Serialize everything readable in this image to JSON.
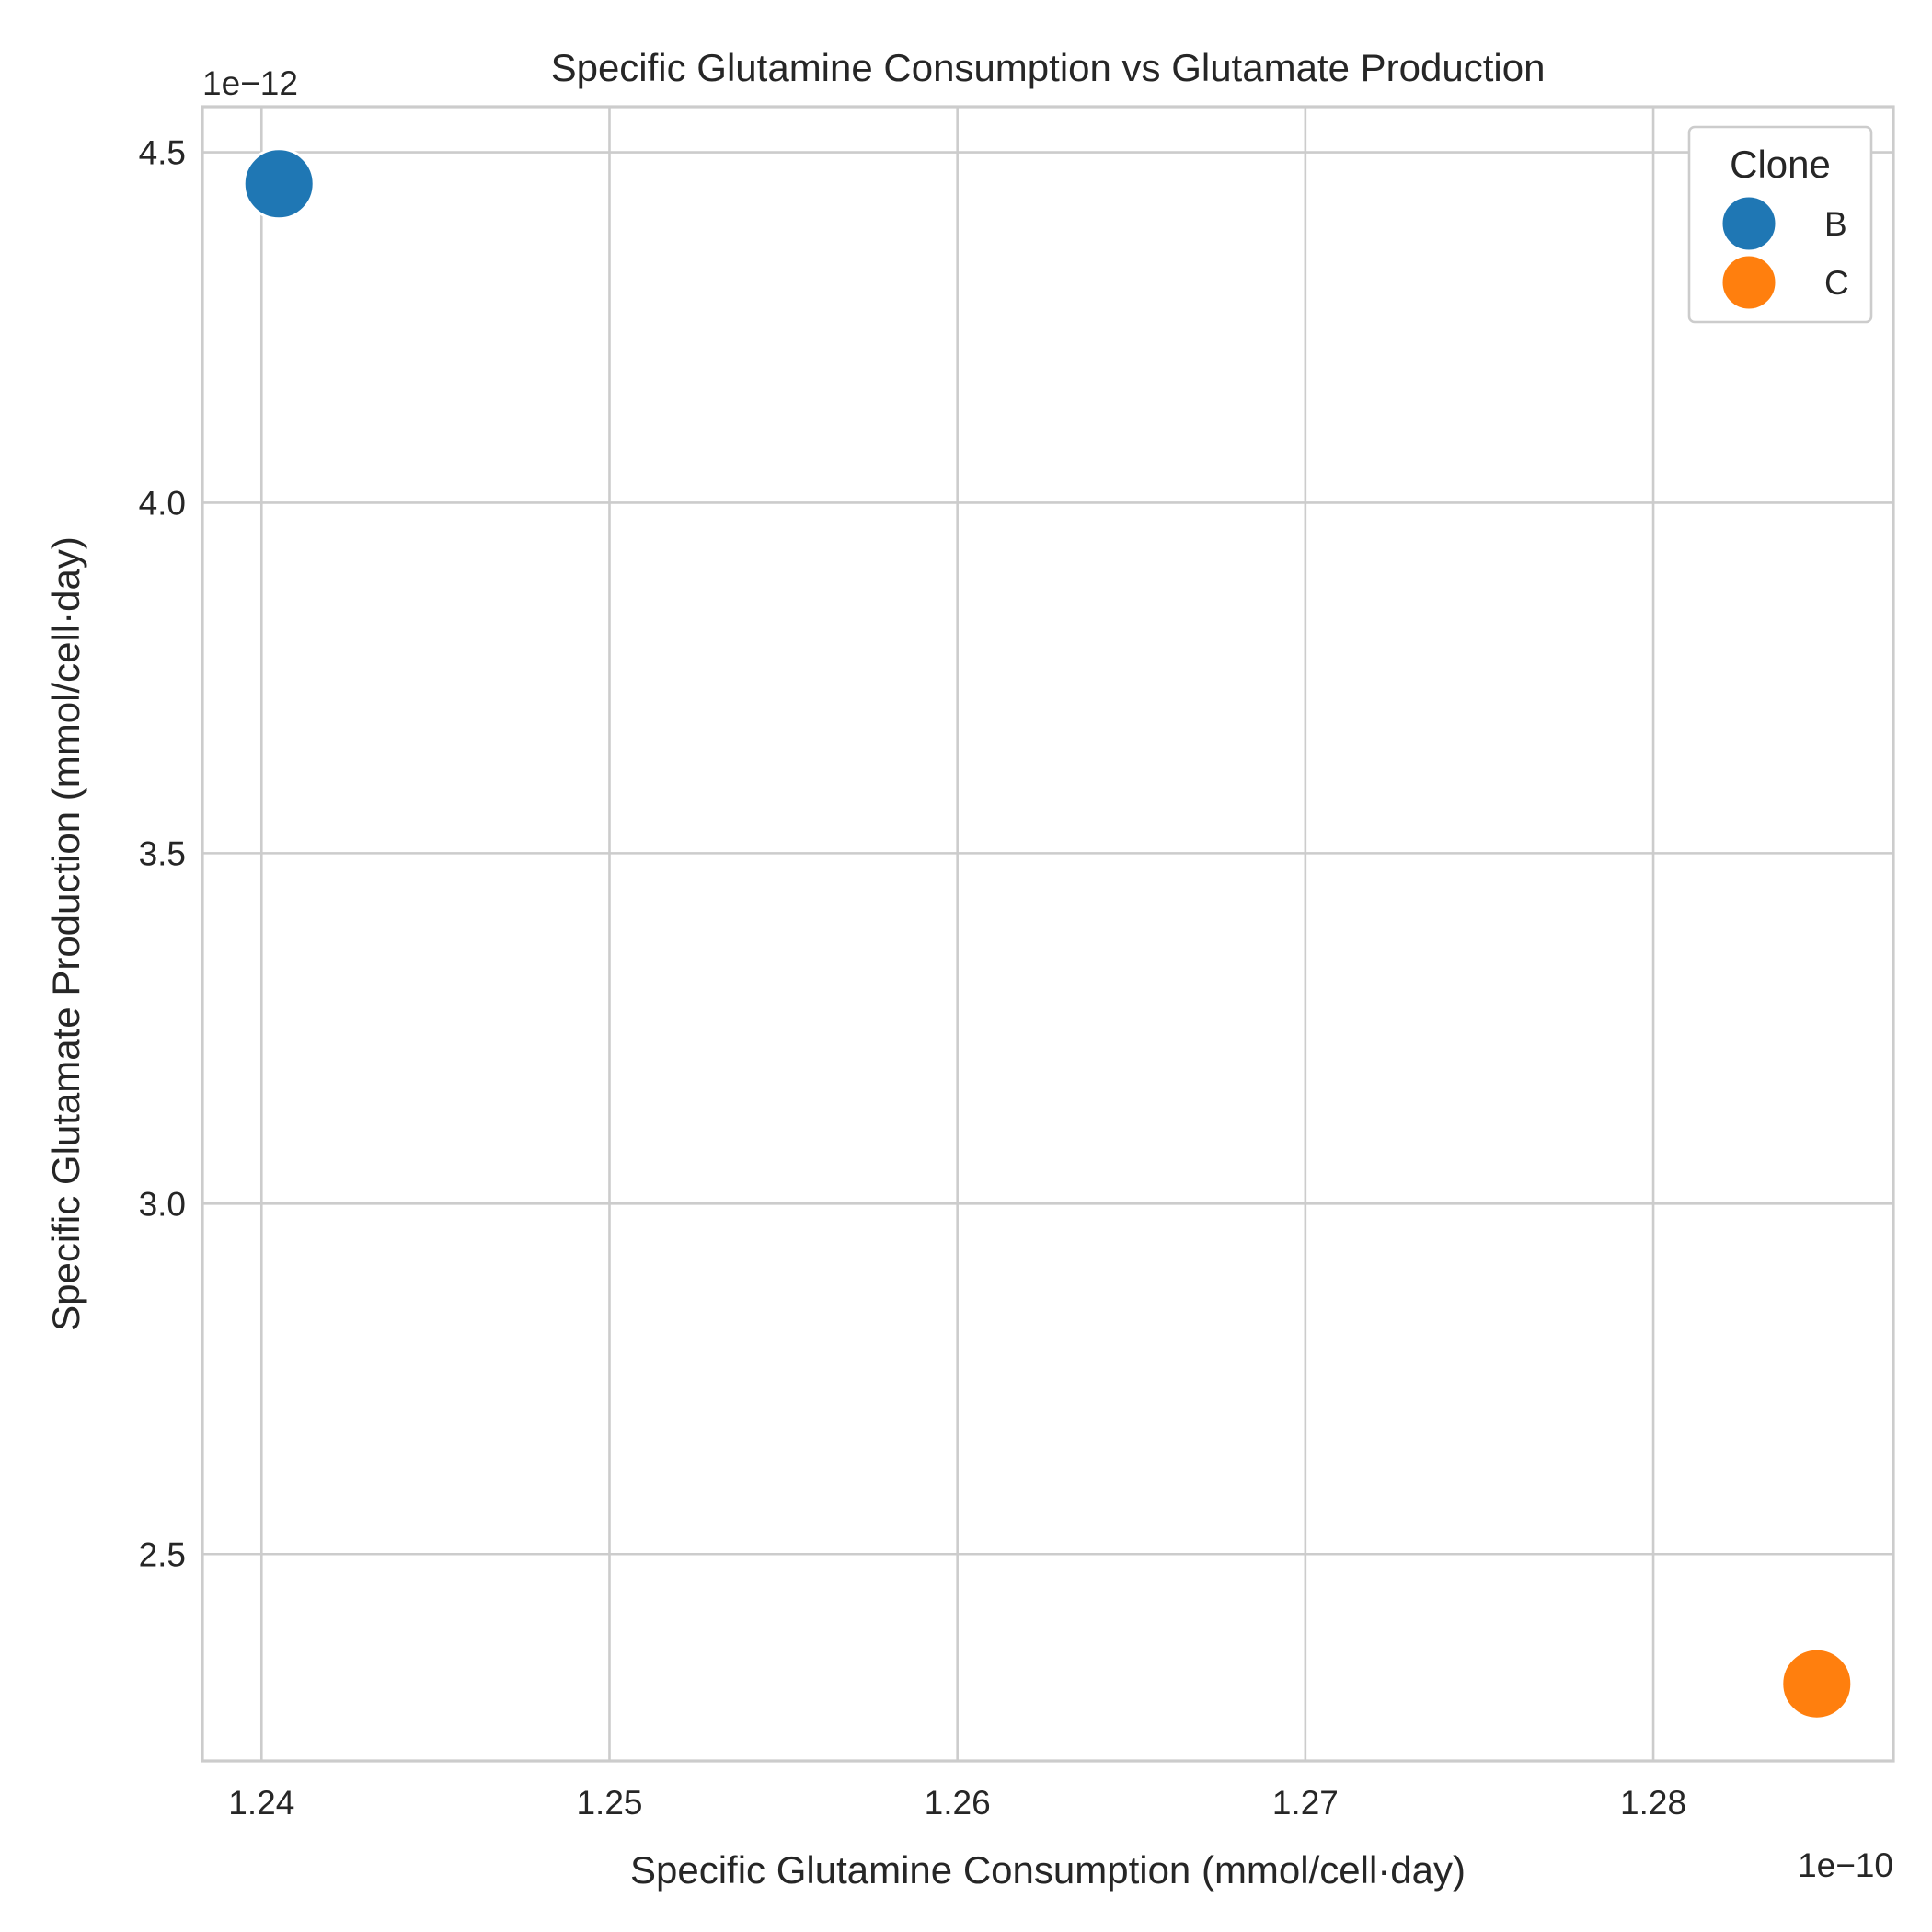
{
  "chart_data": {
    "type": "scatter",
    "title": "Specific Glutamine Consumption vs Glutamate Production",
    "xlabel": "Specific Glutamine Consumption (mmol/cell·day)",
    "ylabel": "Specific Glutamate Production (mmol/cell·day)",
    "x_offset_label": "1e−10",
    "y_offset_label": "1e−12",
    "x_scale": 1e-10,
    "y_scale": 1e-12,
    "xlim": [
      1.2383,
      1.2869
    ],
    "ylim": [
      2.205,
      4.565
    ],
    "x_ticks": [
      1.24,
      1.25,
      1.26,
      1.27,
      1.28
    ],
    "x_tick_labels": [
      "1.24",
      "1.25",
      "1.26",
      "1.27",
      "1.28"
    ],
    "y_ticks": [
      2.5,
      3.0,
      3.5,
      4.0,
      4.5
    ],
    "y_tick_labels": [
      "2.5",
      "3.0",
      "3.5",
      "4.0",
      "4.5"
    ],
    "grid": true,
    "legend": {
      "title": "Clone",
      "placement": "top-right",
      "entries": [
        {
          "label": "B",
          "color": "#1f77b4"
        },
        {
          "label": "C",
          "color": "#ff7f0e"
        }
      ]
    },
    "series": [
      {
        "name": "B",
        "color": "#1f77b4",
        "points": [
          {
            "x": 1.2405,
            "y": 4.455
          }
        ]
      },
      {
        "name": "C",
        "color": "#ff7f0e",
        "points": [
          {
            "x": 1.2847,
            "y": 2.315
          }
        ]
      }
    ]
  }
}
